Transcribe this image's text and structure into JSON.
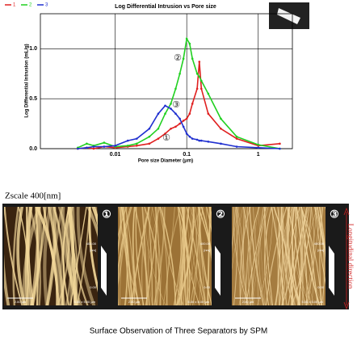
{
  "chart_data": {
    "type": "line",
    "title": "Log Differential Intrusion vs Pore size",
    "xlabel": "Pore size Diameter (μm)",
    "ylabel": "Log Differential Intrusion (mL/g)",
    "log_x": true,
    "grid": true,
    "x": [
      0.003,
      0.004,
      0.005,
      0.007,
      0.01,
      0.015,
      0.02,
      0.03,
      0.04,
      0.05,
      0.06,
      0.07,
      0.08,
      0.09,
      0.1,
      0.11,
      0.12,
      0.14,
      0.15,
      0.16,
      0.2,
      0.3,
      0.5,
      1,
      2
    ],
    "series": [
      {
        "name": "1",
        "color": "#e02020",
        "values": [
          0.0,
          0.01,
          0.0,
          0.02,
          0.01,
          0.02,
          0.03,
          0.05,
          0.1,
          0.15,
          0.2,
          0.22,
          0.25,
          0.28,
          0.3,
          0.35,
          0.45,
          0.6,
          0.87,
          0.6,
          0.35,
          0.2,
          0.1,
          0.03,
          0.05
        ]
      },
      {
        "name": "2",
        "color": "#20d020",
        "values": [
          0.01,
          0.05,
          0.03,
          0.06,
          0.02,
          0.03,
          0.05,
          0.12,
          0.2,
          0.35,
          0.45,
          0.6,
          0.75,
          0.9,
          1.1,
          1.05,
          0.9,
          0.75,
          0.72,
          0.68,
          0.55,
          0.3,
          0.12,
          0.04,
          0.0
        ]
      },
      {
        "name": "3",
        "color": "#2030d0",
        "values": [
          0.0,
          0.01,
          0.02,
          0.02,
          0.03,
          0.08,
          0.1,
          0.2,
          0.35,
          0.43,
          0.4,
          0.35,
          0.3,
          0.22,
          0.15,
          0.12,
          0.1,
          0.09,
          0.08,
          0.08,
          0.07,
          0.05,
          0.02,
          0.01,
          0.0
        ]
      }
    ],
    "xlim": [
      0.0009,
      3
    ],
    "xticks": [
      0.01,
      0.1,
      1
    ],
    "ylim": [
      0,
      1.35
    ],
    "yticks": [
      {
        "value": 0,
        "label": "0.0"
      },
      0.5,
      {
        "value": 1,
        "label": "1.0"
      }
    ],
    "annotations": [
      "②",
      "③",
      "①"
    ]
  },
  "figure": {
    "zscale": "Zscale 400[nm]",
    "panels": [
      {
        "label": "①",
        "z_top": "400.00",
        "z_unit": "[nm]",
        "z_bottom": "0.00",
        "scale_bar": "2.00 µm",
        "scan_size": "5.00 x 5.00 µm"
      },
      {
        "label": "②",
        "z_top": "400.00",
        "z_unit": "[nm]",
        "z_bottom": "0.00",
        "scale_bar": "2.00 µm",
        "scan_size": "5.00 x 5.00 µm"
      },
      {
        "label": "③",
        "z_top": "400.00",
        "z_unit": "[nm]",
        "z_bottom": "0.00",
        "scale_bar": "2.00 µm",
        "scan_size": "5.00 x 5.00 µm"
      }
    ],
    "direction": "Longitudinal direction",
    "caption": "Surface Observation of Three Separators by SPM"
  }
}
